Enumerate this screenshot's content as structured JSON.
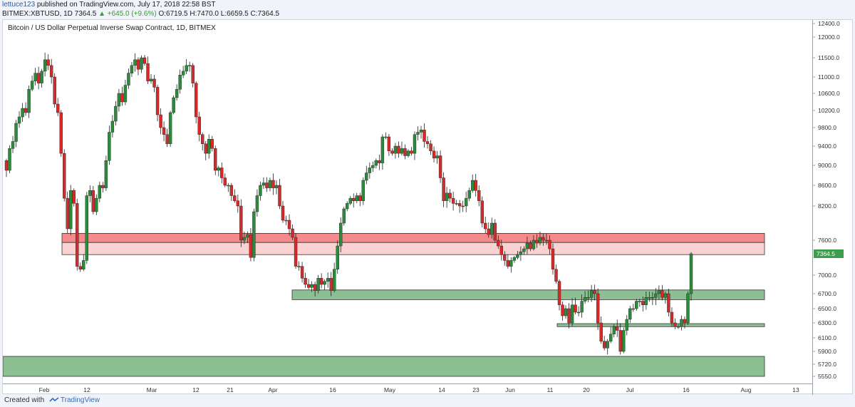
{
  "header": {
    "author": "lettuce123",
    "published_text": " published on TradingView.com, July 17, 2018 22:58 BST",
    "symbol_line": "BITMEX:XBTUSD, 1D 7364.5",
    "change_text": "▲ +645.0 (+9.6%)",
    "ohlc_text": "O:6719.5 H:7470.0 L:6659.5 C:7364.5"
  },
  "footer": {
    "created_with": "Created with",
    "brand": "TradingView"
  },
  "colors": {
    "bull": "#2c8a3c",
    "bear": "#d42a2a",
    "resistance_zone": "#f58a8a",
    "support_zone": "#8cbf92",
    "price_tag": "#3f9e4e"
  },
  "chart_data": {
    "type": "candlestick",
    "title": "Bitcoin / US Dollar Perpetual Inverse Swap Contract, 1D, BITMEX",
    "y_ticks": [
      12400,
      12000,
      11500,
      11000,
      10600,
      10200,
      9800,
      9400,
      9000,
      8600,
      8200,
      7600,
      7364.5,
      7000,
      6700,
      6500,
      6300,
      6100,
      5900,
      5720,
      5550
    ],
    "y_tick_labels": [
      "12400.0",
      "12000.0",
      "11500.0",
      "11000.0",
      "10600.0",
      "10200.0",
      "9800.0",
      "9400.0",
      "9000.0",
      "8600.0",
      "8200.0",
      "7600.0",
      "7364.5",
      "7000.0",
      "6700.0",
      "6500.0",
      "6300.0",
      "6100.0",
      "5900.0",
      "5720.0",
      "5550.0"
    ],
    "x_tick_labels": [
      "Feb",
      "12",
      "Mar",
      "12",
      "21",
      "Apr",
      "16",
      "May",
      "14",
      "23",
      "Jun",
      "11",
      "20",
      "Jul",
      "16",
      "Aug",
      "13"
    ],
    "last_price": 7364.5,
    "last_price_label": "7364.5",
    "zones": [
      {
        "kind": "resistance",
        "low": 7350,
        "high": 7720
      },
      {
        "kind": "support",
        "low": 6620,
        "high": 6760
      },
      {
        "kind": "support",
        "low": 6250,
        "high": 6290
      },
      {
        "kind": "support",
        "low": 5550,
        "high": 5830
      }
    ],
    "closes": [
      8900,
      9350,
      9500,
      9900,
      10050,
      10250,
      10150,
      10700,
      10900,
      11100,
      10850,
      11150,
      11450,
      11300,
      11000,
      10350,
      10150,
      9250,
      8350,
      7800,
      8500,
      8250,
      7150,
      7100,
      7250,
      8400,
      8500,
      8100,
      8350,
      8600,
      8550,
      9100,
      9700,
      9950,
      10300,
      10600,
      10400,
      10800,
      11100,
      11300,
      11450,
      11200,
      11500,
      11350,
      10900,
      10950,
      10750,
      10100,
      9800,
      9650,
      9450,
      10150,
      10500,
      10700,
      11050,
      11150,
      11300,
      11300,
      10850,
      10050,
      9650,
      9450,
      9250,
      9550,
      9350,
      8900,
      8950,
      8750,
      8600,
      8600,
      8400,
      8300,
      8200,
      7600,
      7650,
      7700,
      7300,
      8100,
      8400,
      8600,
      8650,
      8550,
      8700,
      8550,
      8600,
      8200,
      7950,
      7950,
      7800,
      7650,
      7150,
      7150,
      6950,
      6850,
      6800,
      6850,
      6750,
      6950,
      6850,
      6900,
      6950,
      6750,
      7100,
      7500,
      7900,
      8150,
      8250,
      8350,
      8300,
      8400,
      8300,
      8700,
      8850,
      8950,
      9000,
      9100,
      9050,
      9600,
      9600,
      9300,
      9250,
      9400,
      9250,
      9350,
      9200,
      9300,
      9250,
      9650,
      9700,
      9750,
      9500,
      9450,
      9300,
      9150,
      9200,
      8750,
      8300,
      8450,
      8350,
      8250,
      8250,
      8200,
      8200,
      8350,
      8500,
      8700,
      8500,
      8300,
      7900,
      7800,
      7700,
      7900,
      7600,
      7500,
      7350,
      7250,
      7150,
      7250,
      7300,
      7350,
      7400,
      7450,
      7550,
      7450,
      7600,
      7550,
      7650,
      7600,
      7600,
      7450,
      7100,
      6900,
      6550,
      6400,
      6500,
      6300,
      6550,
      6450,
      6450,
      6600,
      6650,
      6650,
      6750,
      6700,
      6300,
      6050,
      5950,
      6050,
      6150,
      6250,
      6200,
      5900,
      6200,
      6350,
      6500,
      6500,
      6600,
      6600,
      6550,
      6650,
      6650,
      6650,
      6700,
      6750,
      6650,
      6700,
      6450,
      6300,
      6250,
      6250,
      6350,
      6300,
      6700,
      7364.5
    ]
  }
}
